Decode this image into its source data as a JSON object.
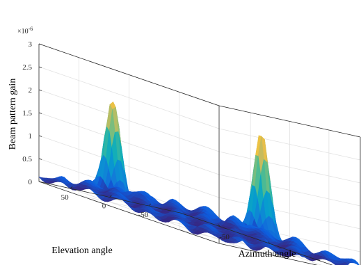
{
  "chart_data": {
    "type": "surface",
    "title": "",
    "xlabel": "Azimuth angle",
    "ylabel": "Elevation angle",
    "zlabel": "Beam pattern gain",
    "z_exponent_label": "×10",
    "z_exponent_power": "-6",
    "xlim": [
      -90,
      90
    ],
    "ylim": [
      -90,
      90
    ],
    "zlim": [
      0,
      3
    ],
    "x_ticks": [
      "-50",
      "0",
      "50"
    ],
    "y_ticks": [
      "-50",
      "0",
      "50"
    ],
    "z_ticks": [
      "0",
      "0.5",
      "1",
      "1.5",
      "2",
      "2.5",
      "3"
    ],
    "grid": true,
    "colormap": "parula",
    "peaks": [
      {
        "azimuth": -40,
        "elevation": 60,
        "gain": 2.35
      },
      {
        "azimuth": 30,
        "elevation": -40,
        "gain": 2.45
      }
    ],
    "base_level": 0.15,
    "z_unit_scale": 1e-06
  }
}
